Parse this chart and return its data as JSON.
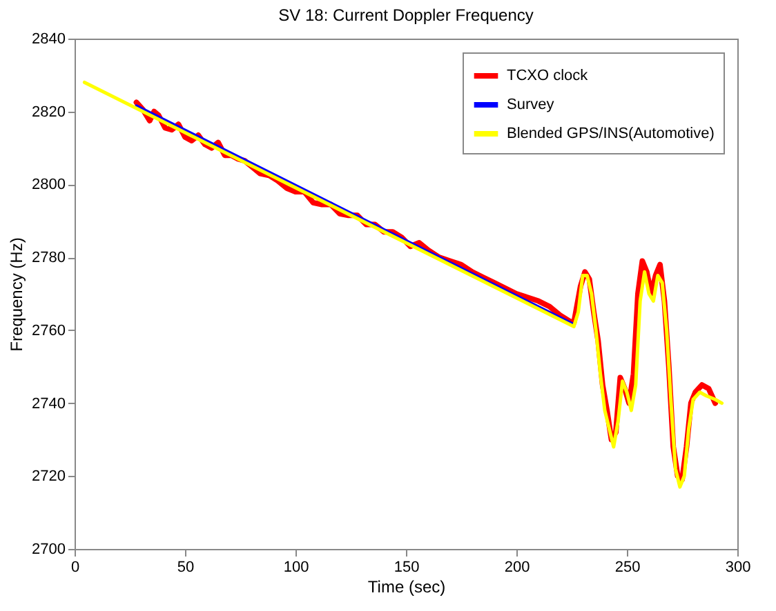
{
  "chart_data": {
    "type": "line",
    "title": "SV 18: Current Doppler Frequency",
    "xlabel": "Time (sec)",
    "ylabel": "Frequency (Hz)",
    "xlim": [
      0,
      300
    ],
    "xticks": [
      0,
      50,
      100,
      150,
      200,
      250,
      300
    ],
    "ylim": [
      2700,
      2840
    ],
    "yticks": [
      2700,
      2720,
      2740,
      2760,
      2780,
      2800,
      2820,
      2840
    ],
    "grid": false,
    "legend": "top right",
    "marker": "none",
    "line_style": "solid",
    "series": [
      {
        "name": "TCXO clock",
        "color": "#ff0000",
        "x": [
          28,
          31,
          34,
          36,
          38,
          41,
          44,
          47,
          50,
          53,
          56,
          59,
          62,
          65,
          68,
          71,
          74,
          77,
          80,
          84,
          88,
          92,
          96,
          100,
          104,
          108,
          112,
          116,
          120,
          124,
          128,
          132,
          136,
          140,
          144,
          148,
          152,
          156,
          160,
          165,
          170,
          175,
          180,
          185,
          190,
          195,
          200,
          205,
          210,
          215,
          220,
          224,
          226,
          229,
          231,
          233,
          235,
          237,
          239,
          241,
          243,
          245,
          247,
          249,
          251,
          253,
          255,
          257,
          259,
          261,
          263,
          265,
          267,
          269,
          271,
          273,
          275,
          277,
          279,
          281,
          284,
          287,
          290
        ],
        "values": [
          2822.5,
          2820.5,
          2817.5,
          2820,
          2819,
          2815.5,
          2815,
          2816.5,
          2813,
          2812,
          2813.5,
          2811,
          2810,
          2811.5,
          2808,
          2808,
          2807,
          2806.5,
          2805,
          2803,
          2802.5,
          2801,
          2799,
          2798,
          2798,
          2795,
          2794.5,
          2794.5,
          2792,
          2791.5,
          2791.5,
          2789,
          2789,
          2787,
          2787,
          2785.5,
          2783,
          2784,
          2782,
          2780,
          2779,
          2778,
          2776,
          2774.5,
          2773,
          2771.5,
          2770,
          2769,
          2768,
          2766.5,
          2764,
          2762.5,
          2762,
          2772,
          2776,
          2774,
          2765,
          2757,
          2745,
          2738,
          2730,
          2732,
          2747,
          2744,
          2740,
          2748,
          2770,
          2779,
          2776,
          2770,
          2775,
          2778,
          2768,
          2750,
          2728,
          2720,
          2719,
          2728,
          2740,
          2743,
          2745,
          2744,
          2740
        ]
      },
      {
        "name": "Survey",
        "color": "#0000ff",
        "x": [
          28,
          226
        ],
        "values": [
          2821.6,
          2761.6
        ]
      },
      {
        "name": "Blended GPS/INS(Automotive)",
        "color": "#ffff00",
        "x": [
          4.5,
          226,
          228,
          230,
          232,
          234,
          236,
          238,
          240,
          242,
          244,
          246,
          248,
          250,
          252,
          254,
          256,
          258,
          260,
          262,
          264,
          266,
          268,
          270,
          272,
          274,
          276,
          278,
          280,
          283,
          286,
          290,
          293
        ],
        "values": [
          2828,
          2761,
          2765,
          2775,
          2775,
          2770,
          2760,
          2748,
          2738,
          2733,
          2728,
          2735,
          2746,
          2743,
          2738,
          2745,
          2768,
          2776,
          2770,
          2768,
          2775,
          2773,
          2760,
          2740,
          2722,
          2717,
          2720,
          2733,
          2741,
          2743,
          2742,
          2741,
          2740
        ]
      }
    ]
  }
}
